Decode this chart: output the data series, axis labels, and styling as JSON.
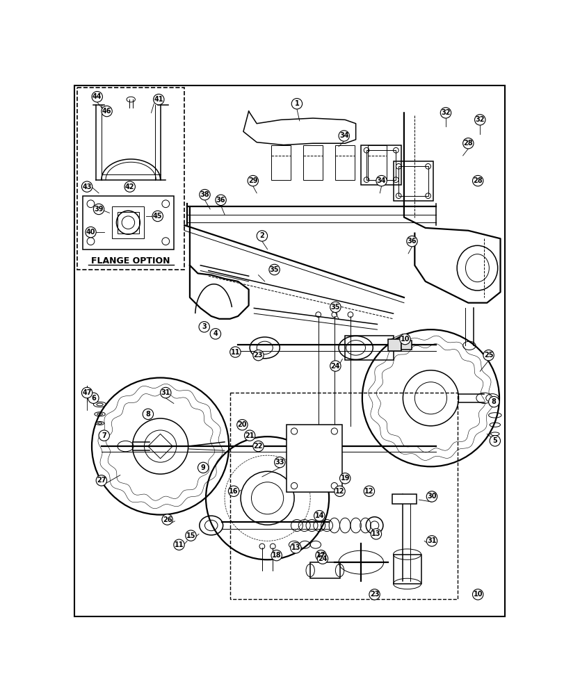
{
  "background_color": "#ffffff",
  "line_color": "#000000",
  "flange_label": "FLANGE OPTION",
  "dpi": 100,
  "figwidth": 8.12,
  "figheight": 10.0
}
